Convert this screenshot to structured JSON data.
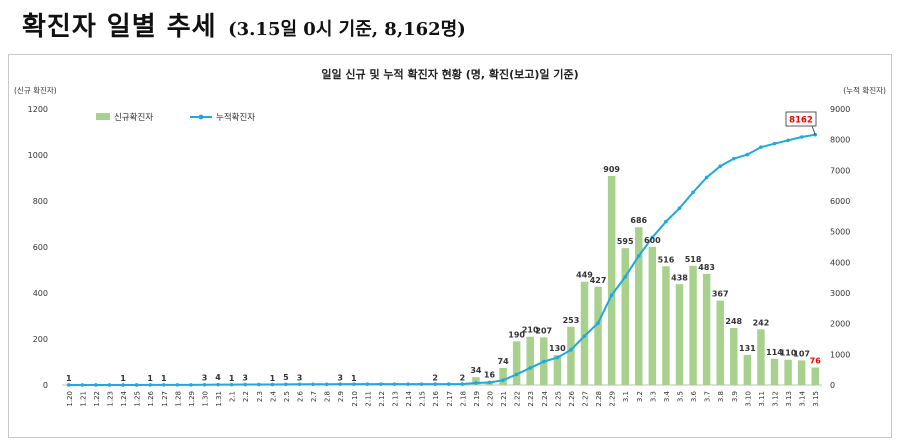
{
  "header": {
    "title": "확진자 일별 추세",
    "subtitle": "(3.15일 0시 기준, 8,162명)"
  },
  "chart_data": {
    "type": "bar",
    "title": "일일 신규 및 누적 확진자 현황 (명, 확진(보고)일 기준)",
    "left_axis_label": "(신규 확진자)",
    "right_axis_label": "(누적 확진자)",
    "ylim_left": [
      0,
      1200
    ],
    "yticks_left": [
      "0",
      "200",
      "400",
      "600",
      "800",
      "1000",
      "1200"
    ],
    "ylim_right": [
      0,
      9000
    ],
    "yticks_right": [
      "0",
      "1000",
      "2000",
      "3000",
      "4000",
      "5000",
      "6000",
      "7000",
      "8000",
      "9000"
    ],
    "legend": {
      "bar": "신규확진자",
      "line": "누적확진자",
      "position": "top-left"
    },
    "categories": [
      "1.20",
      "1.21",
      "1.22",
      "1.23",
      "1.24",
      "1.25",
      "1.26",
      "1.27",
      "1.28",
      "1.29",
      "1.30",
      "1.31",
      "2.1",
      "2.2",
      "2.3",
      "2.4",
      "2.5",
      "2.6",
      "2.7",
      "2.8",
      "2.9",
      "2.10",
      "2.11",
      "2.12",
      "2.13",
      "2.14",
      "2.15",
      "2.16",
      "2.17",
      "2.18",
      "2.19",
      "2.20",
      "2.21",
      "2.22",
      "2.23",
      "2.24",
      "2.25",
      "2.26",
      "2.27",
      "2.28",
      "2.29",
      "3.1",
      "3.2",
      "3.3",
      "3.4",
      "3.5",
      "3.6",
      "3.7",
      "3.8",
      "3.9",
      "3.10",
      "3.11",
      "3.12",
      "3.13",
      "3.14",
      "3.15"
    ],
    "series": [
      {
        "name": "신규확진자",
        "type": "bar",
        "color": "#a9d18e",
        "values": [
          1,
          0,
          0,
          0,
          1,
          0,
          1,
          1,
          0,
          0,
          3,
          4,
          1,
          3,
          0,
          1,
          5,
          3,
          0,
          0,
          3,
          1,
          0,
          0,
          0,
          0,
          0,
          2,
          0,
          2,
          34,
          16,
          74,
          190,
          210,
          207,
          130,
          253,
          449,
          427,
          909,
          595,
          686,
          600,
          516,
          438,
          518,
          483,
          367,
          248,
          131,
          242,
          114,
          110,
          107,
          76
        ],
        "labels": [
          "1",
          "",
          "",
          "",
          "1",
          "",
          "1",
          "1",
          "",
          "",
          "3",
          "4",
          "1",
          "3",
          "",
          "1",
          "5",
          "3",
          "",
          "",
          "3",
          "1",
          "",
          "",
          "",
          "",
          "",
          "2",
          "",
          "2",
          "34",
          "16",
          "74",
          "190",
          "210",
          "207",
          "130",
          "253",
          "449",
          "427",
          "909",
          "595",
          "686",
          "600",
          "516",
          "438",
          "518",
          "483",
          "367",
          "248",
          "131",
          "242",
          "114",
          "110",
          "107",
          "76"
        ]
      },
      {
        "name": "누적확진자",
        "type": "line",
        "color": "#1fa9e1",
        "values": [
          1,
          1,
          1,
          1,
          2,
          2,
          3,
          4,
          4,
          4,
          7,
          11,
          12,
          15,
          15,
          16,
          21,
          24,
          24,
          24,
          27,
          28,
          28,
          28,
          28,
          28,
          28,
          30,
          30,
          32,
          66,
          82,
          156,
          346,
          556,
          763,
          893,
          1146,
          1595,
          2022,
          2931,
          3526,
          4212,
          4812,
          5328,
          5766,
          6284,
          6767,
          7134,
          7382,
          7513,
          7755,
          7869,
          7979,
          8086,
          8162
        ]
      }
    ],
    "highlight": {
      "cumulative_last": "8162",
      "new_last": "76",
      "color": "#ff0000"
    }
  }
}
